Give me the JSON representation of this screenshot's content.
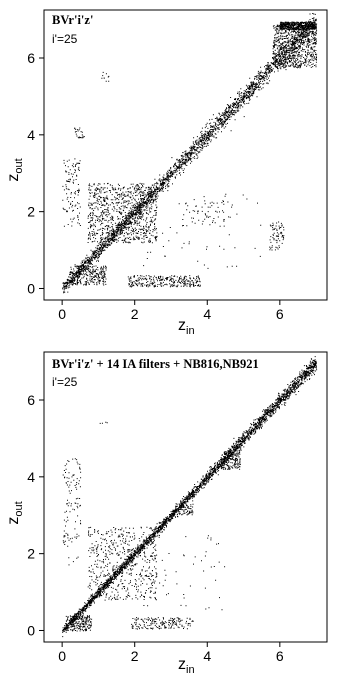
{
  "chart_data": [
    {
      "type": "scatter",
      "title": "BVr'i'z'",
      "subtitle": "i'=25",
      "xlabel_main": "z",
      "xlabel_sub": "in",
      "ylabel_main": "z",
      "ylabel_sub": "out",
      "xlim": [
        -0.5,
        7.3
      ],
      "ylim": [
        -0.3,
        7.25
      ],
      "xticks": [
        "0",
        "2",
        "4",
        "6"
      ],
      "yticks": [
        "0",
        "2",
        "4",
        "6"
      ],
      "grid": false,
      "point_color": "#000000",
      "diagonal": {
        "x_from": 0,
        "x_to": 7,
        "count": 2600,
        "scatter": 0.08
      },
      "clusters": [
        {
          "x": [
            0.2,
            1.2
          ],
          "y": [
            0.1,
            0.6
          ],
          "count": 260
        },
        {
          "x": [
            0.7,
            2.6
          ],
          "y": [
            1.2,
            2.75
          ],
          "count": 850
        },
        {
          "x": [
            0.0,
            0.5
          ],
          "y": [
            1.6,
            3.4
          ],
          "count": 110
        },
        {
          "x": [
            0.3,
            0.6
          ],
          "y": [
            3.9,
            4.2
          ],
          "count": 25
        },
        {
          "x": [
            1.0,
            1.3
          ],
          "y": [
            5.4,
            5.65
          ],
          "count": 10
        },
        {
          "x": [
            1.8,
            3.8
          ],
          "y": [
            0.05,
            0.35
          ],
          "count": 280
        },
        {
          "x": [
            3.2,
            4.5
          ],
          "y": [
            1.6,
            2.3
          ],
          "count": 60
        },
        {
          "x": [
            5.7,
            6.1
          ],
          "y": [
            1.0,
            1.75
          ],
          "count": 70
        },
        {
          "x": [
            2.0,
            5.5
          ],
          "y": [
            0.5,
            2.5
          ],
          "count": 60
        },
        {
          "x": [
            5.8,
            7.0
          ],
          "y": [
            5.75,
            6.9
          ],
          "count": 700
        },
        {
          "x": [
            6.0,
            7.0
          ],
          "y": [
            6.75,
            6.95
          ],
          "count": 500
        }
      ]
    },
    {
      "type": "scatter",
      "title": "BVr'i'z' + 14 IA filters + NB816,NB921",
      "subtitle": "i'=25",
      "xlabel_main": "z",
      "xlabel_sub": "in",
      "ylabel_main": "z",
      "ylabel_sub": "out",
      "xlim": [
        -0.5,
        7.3
      ],
      "ylim": [
        -0.3,
        7.25
      ],
      "xticks": [
        "0",
        "2",
        "4",
        "6"
      ],
      "yticks": [
        "0",
        "2",
        "4",
        "6"
      ],
      "grid": false,
      "point_color": "#000000",
      "diagonal": {
        "x_from": 0,
        "x_to": 7,
        "count": 3000,
        "scatter": 0.05
      },
      "clusters": [
        {
          "x": [
            0.1,
            0.8
          ],
          "y": [
            0.0,
            0.4
          ],
          "count": 200
        },
        {
          "x": [
            0.7,
            2.6
          ],
          "y": [
            0.8,
            2.7
          ],
          "count": 520
        },
        {
          "x": [
            0.0,
            0.5
          ],
          "y": [
            1.7,
            4.5
          ],
          "count": 110
        },
        {
          "x": [
            1.0,
            1.3
          ],
          "y": [
            5.4,
            5.5
          ],
          "count": 4
        },
        {
          "x": [
            1.9,
            3.6
          ],
          "y": [
            0.05,
            0.35
          ],
          "count": 170
        },
        {
          "x": [
            2.2,
            4.5
          ],
          "y": [
            0.5,
            2.6
          ],
          "count": 50
        },
        {
          "x": [
            4.4,
            4.9
          ],
          "y": [
            4.2,
            4.7
          ],
          "count": 160
        },
        {
          "x": [
            3.2,
            3.6
          ],
          "y": [
            3.0,
            3.3
          ],
          "count": 60
        }
      ]
    }
  ]
}
